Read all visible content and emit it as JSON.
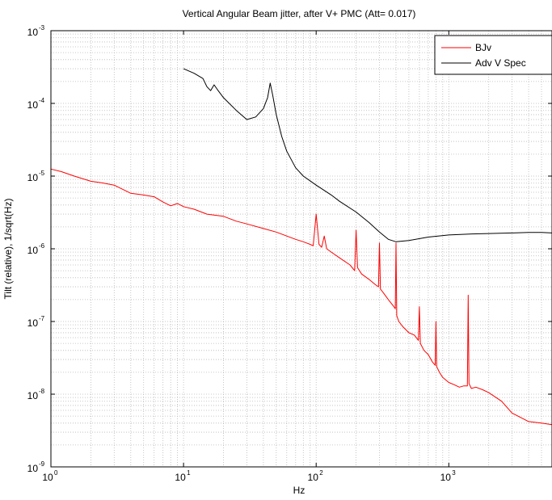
{
  "chart_data": {
    "type": "line",
    "title": "Vertical Angular Beam jitter, after V+ PMC (Att= 0.017)",
    "xlabel": "Hz",
    "ylabel": "Tilt (relative), 1/sqrt(Hz)",
    "xscale": "log",
    "yscale": "log",
    "xlim": [
      1,
      6000
    ],
    "ylim": [
      1e-09,
      0.001
    ],
    "grid": "dotted, major and minor",
    "legend_position": "top-right",
    "x_ticks": [
      {
        "value": 1,
        "base": "10",
        "exp": "0"
      },
      {
        "value": 10,
        "base": "10",
        "exp": "1"
      },
      {
        "value": 100,
        "base": "10",
        "exp": "2"
      },
      {
        "value": 1000,
        "base": "10",
        "exp": "3"
      }
    ],
    "y_ticks": [
      {
        "value": 1e-09,
        "base": "10",
        "exp": "-9"
      },
      {
        "value": 1e-08,
        "base": "10",
        "exp": "-8"
      },
      {
        "value": 1e-07,
        "base": "10",
        "exp": "-7"
      },
      {
        "value": 1e-06,
        "base": "10",
        "exp": "-6"
      },
      {
        "value": 1e-05,
        "base": "10",
        "exp": "-5"
      },
      {
        "value": 0.0001,
        "base": "10",
        "exp": "-4"
      },
      {
        "value": 0.001,
        "base": "10",
        "exp": "-3"
      }
    ],
    "series": [
      {
        "name": "BJv",
        "color": "#ff0000",
        "x": [
          1,
          1.2,
          1.5,
          2,
          2.5,
          3,
          4,
          5,
          6,
          7,
          8,
          9,
          10,
          12,
          15,
          20,
          25,
          30,
          40,
          50,
          60,
          70,
          80,
          90,
          95,
          100,
          105,
          110,
          115,
          120,
          130,
          150,
          180,
          195,
          200,
          205,
          220,
          250,
          280,
          295,
          300,
          305,
          320,
          350,
          385,
          395,
          400,
          405,
          420,
          450,
          500,
          550,
          590,
          600,
          610,
          650,
          700,
          750,
          790,
          800,
          810,
          850,
          900,
          1000,
          1100,
          1200,
          1300,
          1380,
          1400,
          1420,
          1480,
          1600,
          1800,
          2000,
          2500,
          3000,
          4000,
          5000,
          6000
        ],
        "y": [
          1.25e-05,
          1.15e-05,
          1e-05,
          8.5e-06,
          8e-06,
          7.5e-06,
          5.8e-06,
          5.5e-06,
          5.2e-06,
          4.4e-06,
          3.9e-06,
          4.2e-06,
          3.8e-06,
          3.5e-06,
          3e-06,
          2.8e-06,
          2.4e-06,
          2.2e-06,
          1.9e-06,
          1.7e-06,
          1.5e-06,
          1.35e-06,
          1.25e-06,
          1.15e-06,
          1.1e-06,
          3e-06,
          1.15e-06,
          1.05e-06,
          1.5e-06,
          1e-06,
          9e-07,
          7.5e-07,
          6e-07,
          5e-07,
          1.8e-06,
          5.5e-07,
          4.5e-07,
          3.8e-07,
          3.2e-07,
          3e-07,
          1.2e-06,
          2.8e-07,
          2.5e-07,
          2e-07,
          1.6e-07,
          1.5e-07,
          1.2e-06,
          1.2e-07,
          1e-07,
          8.5e-08,
          7e-08,
          6.5e-08,
          5.5e-08,
          1.6e-07,
          5e-08,
          4e-08,
          3.5e-08,
          2.8e-08,
          2.5e-08,
          1e-07,
          2.4e-08,
          2e-08,
          1.7e-08,
          1.45e-08,
          1.35e-08,
          1.25e-08,
          1.3e-08,
          1.3e-08,
          2.3e-07,
          1.4e-08,
          1.2e-08,
          1.25e-08,
          1.15e-08,
          1.05e-08,
          8e-09,
          5.5e-09,
          4.2e-09,
          4e-09,
          3.8e-09
        ]
      },
      {
        "name": "Adv V Spec",
        "color": "#000000",
        "x": [
          10,
          12,
          14,
          15,
          16,
          17,
          18,
          20,
          25,
          30,
          35,
          40,
          43,
          45,
          47,
          50,
          55,
          60,
          70,
          80,
          100,
          130,
          150,
          200,
          250,
          300,
          350,
          400,
          500,
          700,
          1000,
          1500,
          2000,
          3000,
          4000,
          5000,
          6000
        ],
        "y": [
          0.0003,
          0.00026,
          0.00022,
          0.00017,
          0.00015,
          0.00018,
          0.000155,
          0.00012,
          8e-05,
          6e-05,
          6.5e-05,
          8.5e-05,
          0.00012,
          0.00019,
          0.00013,
          7e-05,
          3.5e-05,
          2.2e-05,
          1.3e-05,
          1e-05,
          7.5e-06,
          5.5e-06,
          4.5e-06,
          3.2e-06,
          2.3e-06,
          1.7e-06,
          1.35e-06,
          1.25e-06,
          1.3e-06,
          1.45e-06,
          1.55e-06,
          1.6e-06,
          1.62e-06,
          1.65e-06,
          1.68e-06,
          1.68e-06,
          1.65e-06
        ]
      }
    ]
  }
}
